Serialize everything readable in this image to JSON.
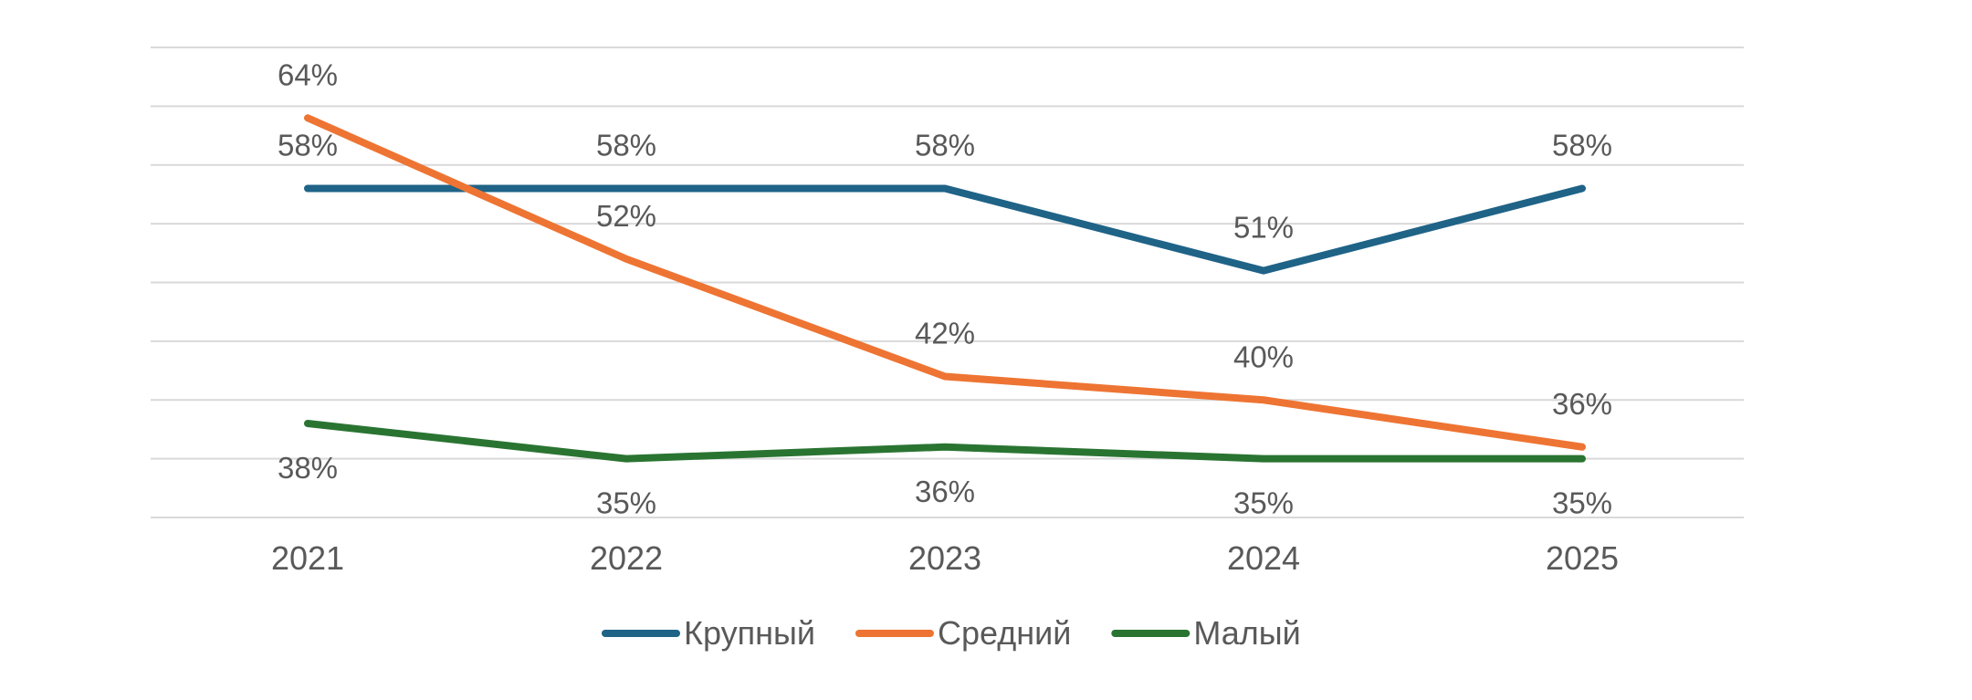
{
  "chart_data": {
    "type": "line",
    "title": "",
    "xlabel": "",
    "ylabel": "",
    "categories": [
      "2021",
      "2022",
      "2023",
      "2024",
      "2025"
    ],
    "ylim": [
      30,
      70
    ],
    "grid": true,
    "y_axis_labels_shown": false,
    "legend_position": "bottom",
    "series": [
      {
        "name": "Крупный",
        "color": "#1f6387",
        "values": [
          58,
          58,
          58,
          51,
          58
        ],
        "labels": [
          "58%",
          "58%",
          "58%",
          "51%",
          "58%"
        ],
        "label_side": "above"
      },
      {
        "name": "Средний",
        "color": "#ee7433",
        "values": [
          64,
          52,
          42,
          40,
          36
        ],
        "labels": [
          "64%",
          "52%",
          "42%",
          "40%",
          "36%"
        ],
        "label_side": "above"
      },
      {
        "name": "Малый",
        "color": "#2a7432",
        "values": [
          38,
          35,
          36,
          35,
          35
        ],
        "labels": [
          "38%",
          "35%",
          "36%",
          "35%",
          "35%"
        ],
        "label_side": "below"
      }
    ]
  }
}
